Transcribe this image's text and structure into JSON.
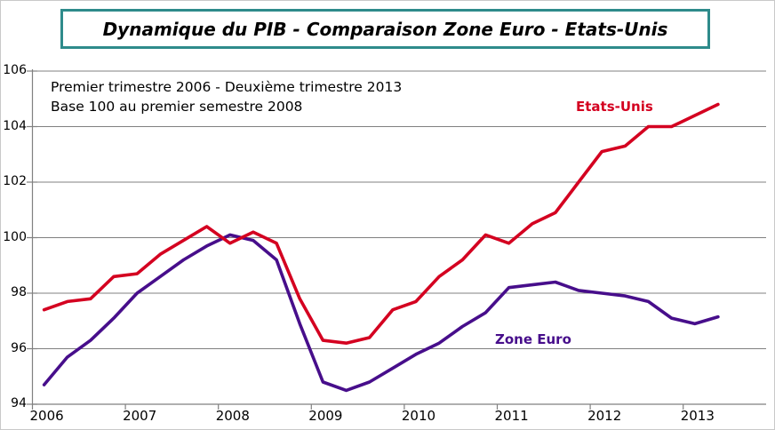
{
  "title": "Dynamique du PIB - Comparaison Zone Euro - Etats-Unis",
  "annotation": {
    "line1": "Premier trimestre 2006 - Deuxième trimestre 2013",
    "line2": "Base 100 au premier semestre 2008"
  },
  "series_labels": {
    "us": "Etats-Unis",
    "euro": "Zone Euro"
  },
  "colors": {
    "title_border": "#2e8b8b",
    "grid": "#808080",
    "axis": "#808080",
    "background": "#ffffff",
    "us_line": "#d40020",
    "euro_line": "#470e8b"
  },
  "chart_data": {
    "type": "line",
    "title": "Dynamique du PIB - Comparaison Zone Euro - Etats-Unis",
    "subtitle": [
      "Premier trimestre 2006 - Deuxième trimestre 2013",
      "Base 100 au premier semestre 2008"
    ],
    "xlabel": "",
    "ylabel": "",
    "ylim": [
      94,
      106
    ],
    "y_ticks": [
      94,
      96,
      98,
      100,
      102,
      104,
      106
    ],
    "x_tick_labels": [
      "2006",
      "2007",
      "2008",
      "2009",
      "2010",
      "2011",
      "2012",
      "2013"
    ],
    "grid": true,
    "legend": "inline-labels",
    "frequency": "quarterly",
    "x_categories": [
      "2006T1",
      "2006T2",
      "2006T3",
      "2006T4",
      "2007T1",
      "2007T2",
      "2007T3",
      "2007T4",
      "2008T1",
      "2008T2",
      "2008T3",
      "2008T4",
      "2009T1",
      "2009T2",
      "2009T3",
      "2009T4",
      "2010T1",
      "2010T2",
      "2010T3",
      "2010T4",
      "2011T1",
      "2011T2",
      "2011T3",
      "2011T4",
      "2012T1",
      "2012T2",
      "2012T3",
      "2012T4",
      "2013T1",
      "2013T2"
    ],
    "series": [
      {
        "name": "Etats-Unis",
        "color": "#d40020",
        "values": [
          97.4,
          97.7,
          97.8,
          98.6,
          98.7,
          99.4,
          99.9,
          100.4,
          99.8,
          100.2,
          99.8,
          97.8,
          96.3,
          96.2,
          96.4,
          97.4,
          97.7,
          98.6,
          99.2,
          100.1,
          99.8,
          100.5,
          100.9,
          102.0,
          103.1,
          103.3,
          104.0,
          104.0,
          104.4,
          104.8
        ]
      },
      {
        "name": "Zone Euro",
        "color": "#470e8b",
        "values": [
          94.7,
          95.7,
          96.3,
          97.1,
          98.0,
          98.6,
          99.2,
          99.7,
          100.1,
          99.9,
          99.2,
          96.9,
          94.8,
          94.5,
          94.8,
          95.3,
          95.8,
          96.2,
          96.8,
          97.3,
          98.2,
          98.3,
          98.4,
          98.1,
          98.0,
          97.9,
          97.7,
          97.1,
          96.9,
          97.15
        ]
      }
    ]
  }
}
